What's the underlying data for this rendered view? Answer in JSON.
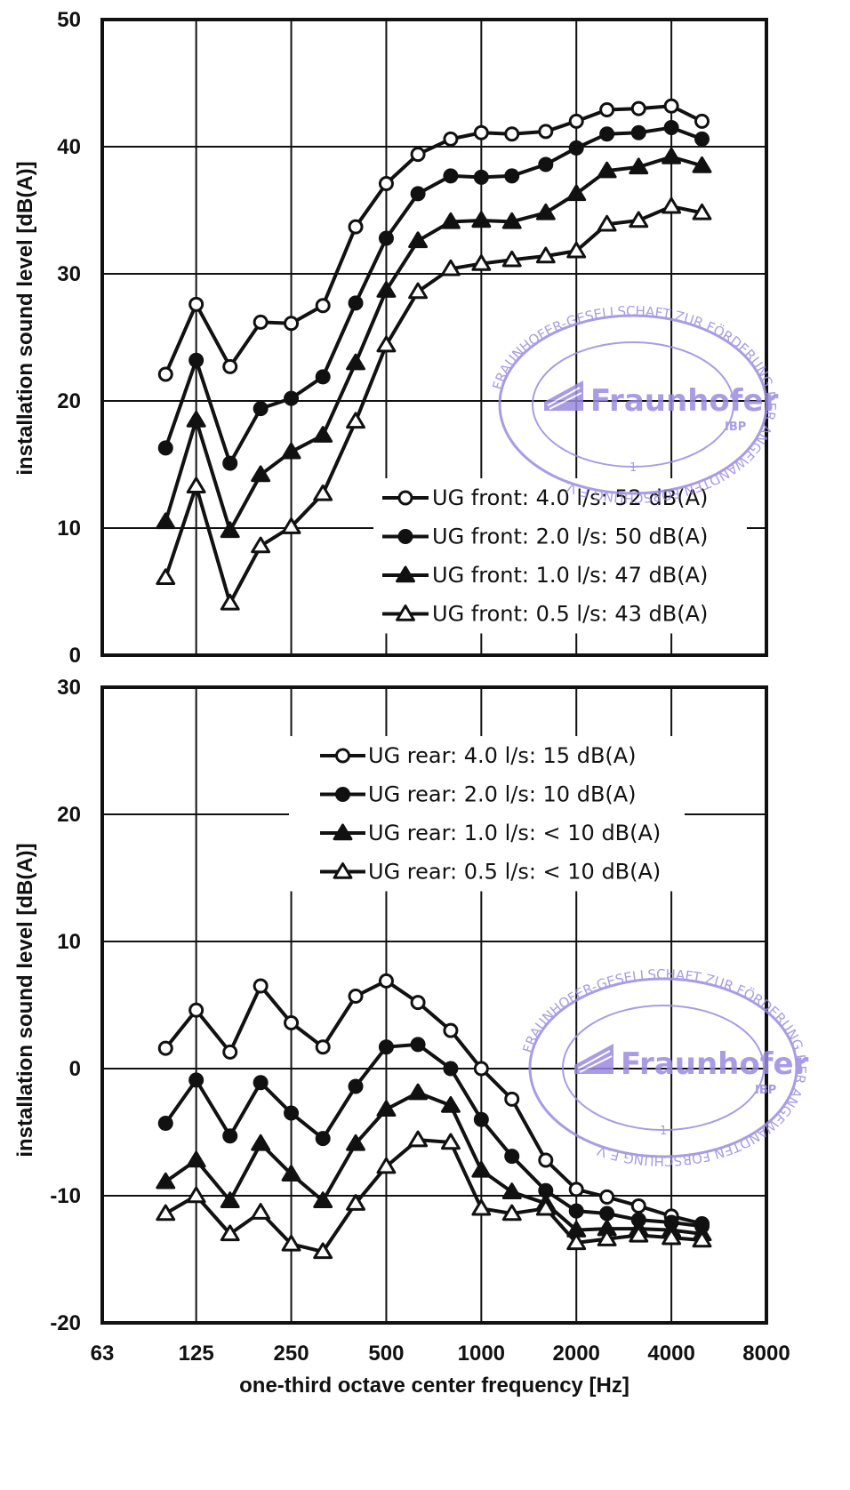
{
  "chart_data": [
    {
      "type": "line",
      "title": "",
      "xlabel": "",
      "ylabel": "installation sound level [dB(A)]",
      "x_scale": "log2",
      "xlim": [
        63,
        8000
      ],
      "ylim": [
        0,
        50
      ],
      "x_ticks": [
        "63",
        "125",
        "250",
        "500",
        "1000",
        "2000",
        "4000",
        "8000"
      ],
      "y_ticks": [
        "0",
        "10",
        "20",
        "30",
        "40",
        "50"
      ],
      "grid": true,
      "legend_position": "bottom-right",
      "x": [
        100,
        125,
        160,
        200,
        250,
        315,
        400,
        500,
        630,
        800,
        1000,
        1250,
        1600,
        2000,
        2500,
        3150,
        4000,
        5000
      ],
      "series": [
        {
          "name": "UG front: 4.0 l/s: 52 dB(A)",
          "marker": "circle-open",
          "values": [
            22.1,
            27.6,
            22.7,
            26.2,
            26.1,
            27.5,
            33.7,
            37.1,
            39.4,
            40.6,
            41.1,
            41.0,
            41.2,
            42.0,
            42.9,
            43.0,
            43.2,
            42.0
          ]
        },
        {
          "name": "UG front: 2.0 l/s: 50 dB(A)",
          "marker": "circle-filled",
          "values": [
            16.3,
            23.2,
            15.1,
            19.4,
            20.2,
            21.9,
            27.7,
            32.8,
            36.3,
            37.7,
            37.6,
            37.7,
            38.6,
            39.9,
            41.0,
            41.1,
            41.5,
            40.6
          ]
        },
        {
          "name": "UG front: 1.0 l/s: 47 dB(A)",
          "marker": "triangle-filled",
          "values": [
            10.5,
            18.5,
            9.8,
            14.2,
            16.0,
            17.3,
            23.0,
            28.7,
            32.6,
            34.1,
            34.2,
            34.1,
            34.8,
            36.3,
            38.1,
            38.4,
            39.2,
            38.5
          ]
        },
        {
          "name": "UG front: 0.5 l/s: 43 dB(A)",
          "marker": "triangle-open",
          "values": [
            6.1,
            13.3,
            4.1,
            8.6,
            10.1,
            12.7,
            18.4,
            24.4,
            28.6,
            30.4,
            30.8,
            31.1,
            31.4,
            31.8,
            33.9,
            34.2,
            35.3,
            34.8
          ]
        }
      ]
    },
    {
      "type": "line",
      "title": "",
      "xlabel": "one-third octave center frequency [Hz]",
      "ylabel": "installation sound level [dB(A)]",
      "x_scale": "log2",
      "xlim": [
        63,
        8000
      ],
      "ylim": [
        -20,
        30
      ],
      "x_ticks": [
        "63",
        "125",
        "250",
        "500",
        "1000",
        "2000",
        "4000",
        "8000"
      ],
      "y_ticks": [
        "-20",
        "-10",
        "0",
        "10",
        "20",
        "30"
      ],
      "grid": true,
      "legend_position": "top-center",
      "x": [
        100,
        125,
        160,
        200,
        250,
        315,
        400,
        500,
        630,
        800,
        1000,
        1250,
        1600,
        2000,
        2500,
        3150,
        4000,
        5000
      ],
      "series": [
        {
          "name": "UG rear: 4.0 l/s: 15 dB(A)",
          "marker": "circle-open",
          "values": [
            1.6,
            4.6,
            1.3,
            6.5,
            3.6,
            1.7,
            5.7,
            6.9,
            5.2,
            3.0,
            0.0,
            -2.4,
            -7.2,
            -9.5,
            -10.1,
            -10.8,
            -11.6,
            -12.2
          ]
        },
        {
          "name": "UG rear: 2.0 l/s: 10 dB(A)",
          "marker": "circle-filled",
          "values": [
            -4.3,
            -0.9,
            -5.3,
            -1.1,
            -3.5,
            -5.5,
            -1.4,
            1.7,
            1.9,
            0.0,
            -4.0,
            -6.9,
            -9.6,
            -11.2,
            -11.4,
            -11.9,
            -12.1,
            -12.4
          ]
        },
        {
          "name": "UG rear: 1.0 l/s: < 10 dB(A)",
          "marker": "triangle-filled",
          "values": [
            -8.9,
            -7.2,
            -10.4,
            -5.9,
            -8.3,
            -10.4,
            -5.9,
            -3.2,
            -1.9,
            -2.9,
            -8.0,
            -9.7,
            -10.6,
            -12.7,
            -12.6,
            -12.6,
            -12.7,
            -13.0
          ]
        },
        {
          "name": "UG rear: 0.5 l/s: < 10 dB(A)",
          "marker": "triangle-open",
          "values": [
            -11.4,
            -10.0,
            -13.0,
            -11.3,
            -13.8,
            -14.4,
            -10.6,
            -7.7,
            -5.6,
            -5.8,
            -11.0,
            -11.4,
            -11.0,
            -13.7,
            -13.4,
            -13.1,
            -13.3,
            -13.5
          ]
        }
      ]
    }
  ],
  "watermark": {
    "brand": "Fraunhofer",
    "institute": "IBP",
    "ring_text": "FRAUNHOFER-GESELLSCHAFT ZUR FÖRDERUNG DER ANGEWANDTEN FORSCHUNG E.V.",
    "number": "1",
    "color": "#9b8be0"
  }
}
